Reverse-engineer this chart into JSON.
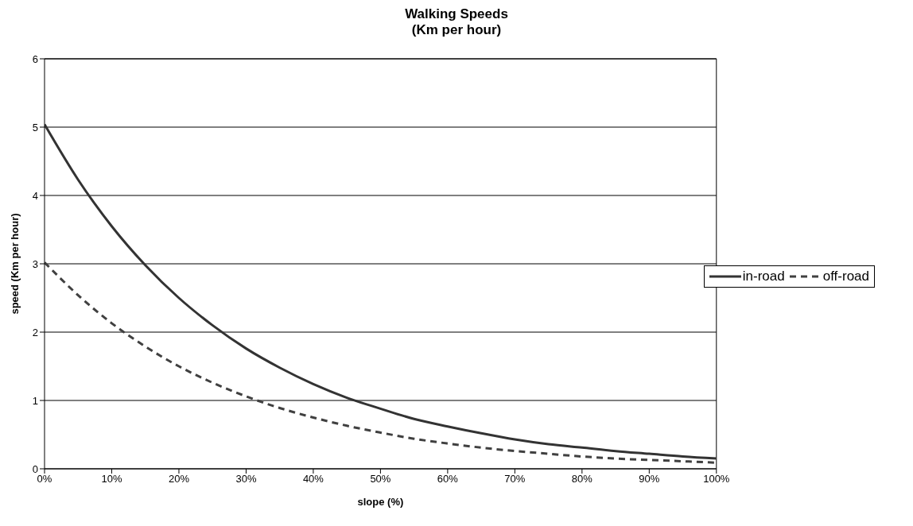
{
  "chart_data": {
    "type": "line",
    "title": "Walking Speeds\n(Km per hour)",
    "xlabel": "slope (%)",
    "ylabel": "speed (Km per hour)",
    "x": [
      0,
      5,
      10,
      15,
      20,
      25,
      30,
      35,
      40,
      45,
      50,
      55,
      60,
      65,
      70,
      75,
      80,
      85,
      90,
      95,
      100
    ],
    "series": [
      {
        "name": "in-road",
        "color": "#333333",
        "line_style": "solid",
        "values": [
          5.04,
          4.23,
          3.55,
          2.98,
          2.5,
          2.1,
          1.76,
          1.48,
          1.24,
          1.04,
          0.88,
          0.73,
          0.62,
          0.52,
          0.43,
          0.36,
          0.31,
          0.26,
          0.22,
          0.18,
          0.15
        ]
      },
      {
        "name": "off-road",
        "color": "#404040",
        "line_style": "dashed",
        "values": [
          3.02,
          2.54,
          2.13,
          1.79,
          1.5,
          1.26,
          1.06,
          0.89,
          0.75,
          0.63,
          0.53,
          0.44,
          0.37,
          0.31,
          0.26,
          0.22,
          0.18,
          0.15,
          0.13,
          0.11,
          0.09
        ]
      }
    ],
    "xlim": [
      0,
      100
    ],
    "xticks": [
      {
        "value": 0,
        "label": "0%"
      },
      {
        "value": 10,
        "label": "10%"
      },
      {
        "value": 20,
        "label": "20%"
      },
      {
        "value": 30,
        "label": "30%"
      },
      {
        "value": 40,
        "label": "40%"
      },
      {
        "value": 50,
        "label": "50%"
      },
      {
        "value": 60,
        "label": "60%"
      },
      {
        "value": 70,
        "label": "70%"
      },
      {
        "value": 80,
        "label": "80%"
      },
      {
        "value": 90,
        "label": "90%"
      },
      {
        "value": 100,
        "label": "100%"
      }
    ],
    "ylim": [
      0,
      6
    ],
    "yticks": [
      0,
      1,
      2,
      3,
      4,
      5,
      6
    ],
    "grid": "y",
    "legend": "right",
    "marker": "none"
  }
}
